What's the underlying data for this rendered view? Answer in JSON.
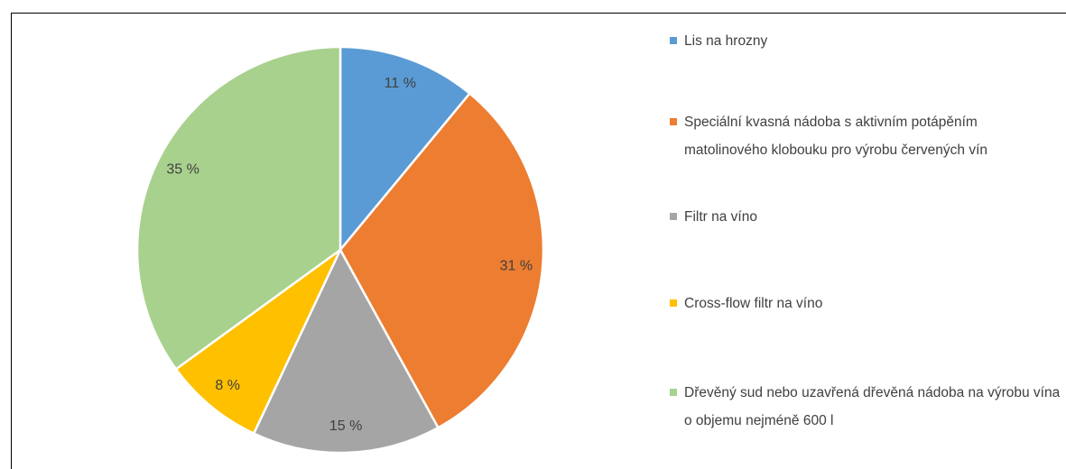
{
  "chart_data": {
    "type": "pie",
    "categories": [
      "Lis na hrozny",
      "Speciální kvasná nádoba s aktivním potápěním matolinového klobouku pro výrobu červených vín",
      "Filtr na víno",
      "Cross-flow filtr na víno",
      "Dřevěný sud nebo uzavřená dřevěná nádoba na výrobu vína o objemu nejméně 600 l"
    ],
    "values": [
      11,
      31,
      15,
      8,
      35
    ],
    "value_labels": [
      "11 %",
      "31 %",
      "15 %",
      "8 %",
      "35 %"
    ],
    "colors": [
      "#5b9bd5",
      "#ed7d31",
      "#a5a5a5",
      "#ffc000",
      "#a9d18e"
    ],
    "legend": "right"
  }
}
